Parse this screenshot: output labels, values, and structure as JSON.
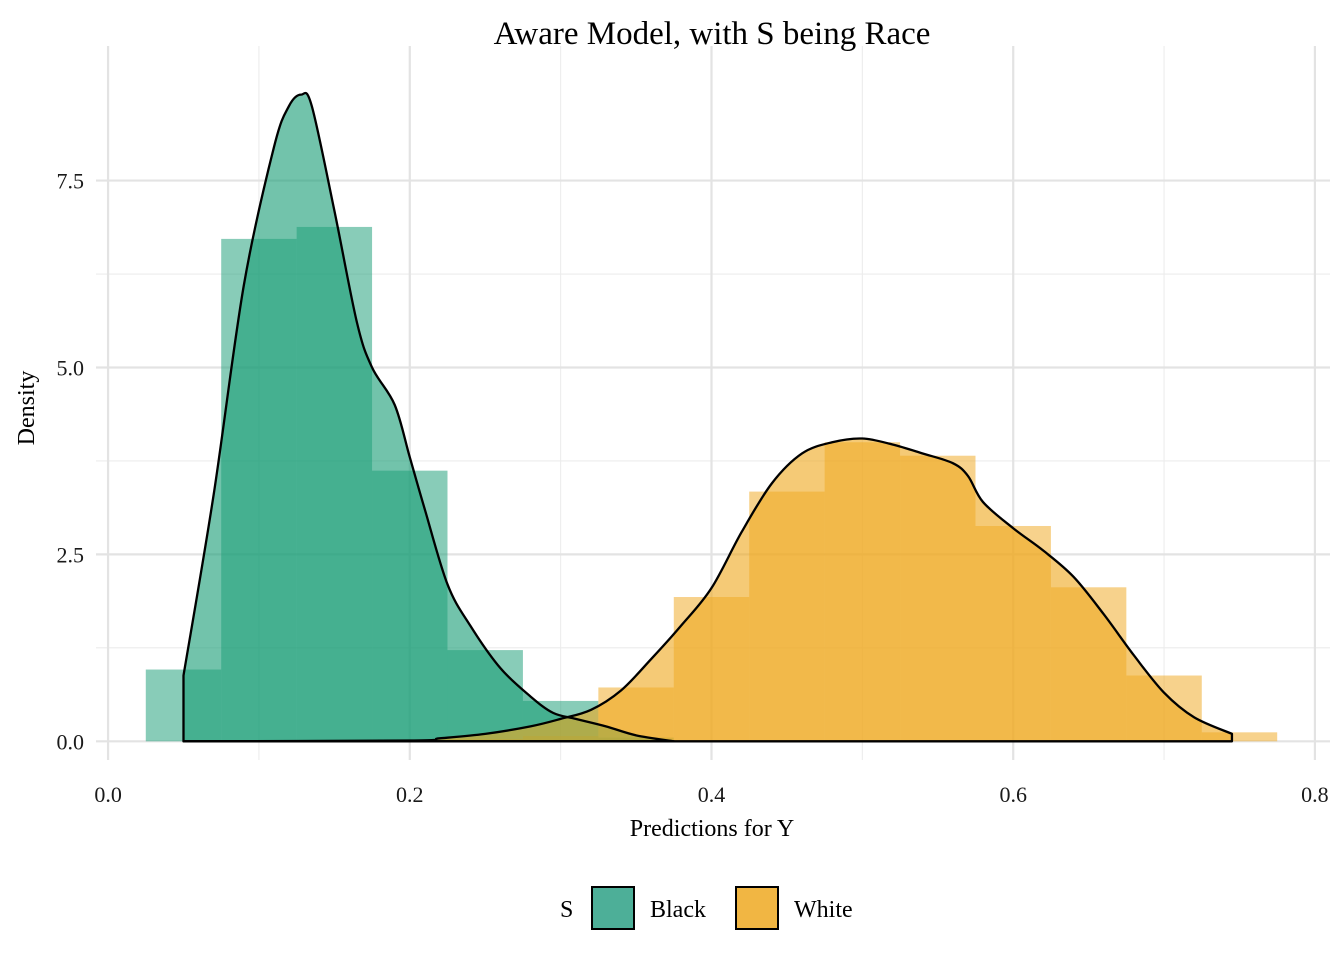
{
  "chart_data": {
    "type": "histogram-density",
    "title": "Aware Model, with S being Race",
    "xlabel": "Predictions for Y",
    "ylabel": "Density",
    "xlim": [
      -0.008,
      0.81
    ],
    "ylim": [
      -0.25,
      9.3
    ],
    "x_ticks": [
      0.0,
      0.2,
      0.4,
      0.6,
      0.8
    ],
    "x_tick_labels": [
      "0.0",
      "0.2",
      "0.4",
      "0.6",
      "0.8"
    ],
    "y_ticks": [
      0.0,
      2.5,
      5.0,
      7.5
    ],
    "y_tick_labels": [
      "0.0",
      "2.5",
      "5.0",
      "7.5"
    ],
    "grid": true,
    "legend": {
      "title": "S",
      "position": "bottom"
    },
    "bin_width": 0.05,
    "series": [
      {
        "name": "Black",
        "color": "#1b9e77",
        "histogram": {
          "bin_starts": [
            0.025,
            0.075,
            0.125,
            0.175,
            0.225,
            0.275,
            0.325
          ],
          "values": [
            0.96,
            6.72,
            6.88,
            3.62,
            1.22,
            0.54,
            0.05
          ]
        },
        "density": {
          "x": [
            0.05,
            0.07,
            0.09,
            0.11,
            0.12,
            0.128,
            0.135,
            0.15,
            0.165,
            0.175,
            0.19,
            0.2,
            0.21,
            0.225,
            0.24,
            0.26,
            0.28,
            0.295,
            0.31,
            0.33,
            0.35,
            0.375
          ],
          "y": [
            0.88,
            3.3,
            6.1,
            7.95,
            8.5,
            8.65,
            8.5,
            7.1,
            5.6,
            5.0,
            4.5,
            3.8,
            3.1,
            2.1,
            1.55,
            0.98,
            0.6,
            0.38,
            0.3,
            0.2,
            0.08,
            0.0
          ]
        }
      },
      {
        "name": "White",
        "color": "#efa922",
        "histogram": {
          "bin_starts": [
            0.225,
            0.275,
            0.325,
            0.375,
            0.425,
            0.475,
            0.525,
            0.575,
            0.625,
            0.675,
            0.725
          ],
          "values": [
            0.03,
            0.07,
            0.72,
            1.93,
            3.34,
            4.0,
            3.82,
            2.88,
            2.06,
            0.88,
            0.12
          ]
        },
        "density": {
          "x": [
            0.05,
            0.2,
            0.22,
            0.25,
            0.28,
            0.3,
            0.32,
            0.34,
            0.36,
            0.38,
            0.4,
            0.42,
            0.44,
            0.46,
            0.48,
            0.5,
            0.52,
            0.54,
            0.56,
            0.57,
            0.58,
            0.6,
            0.62,
            0.64,
            0.66,
            0.68,
            0.7,
            0.72,
            0.745
          ],
          "y": [
            0.0,
            0.01,
            0.04,
            0.1,
            0.2,
            0.3,
            0.42,
            0.68,
            1.1,
            1.55,
            2.05,
            2.8,
            3.45,
            3.85,
            4.0,
            4.05,
            3.97,
            3.85,
            3.72,
            3.55,
            3.2,
            2.85,
            2.55,
            2.2,
            1.7,
            1.15,
            0.65,
            0.32,
            0.1
          ]
        }
      }
    ]
  }
}
